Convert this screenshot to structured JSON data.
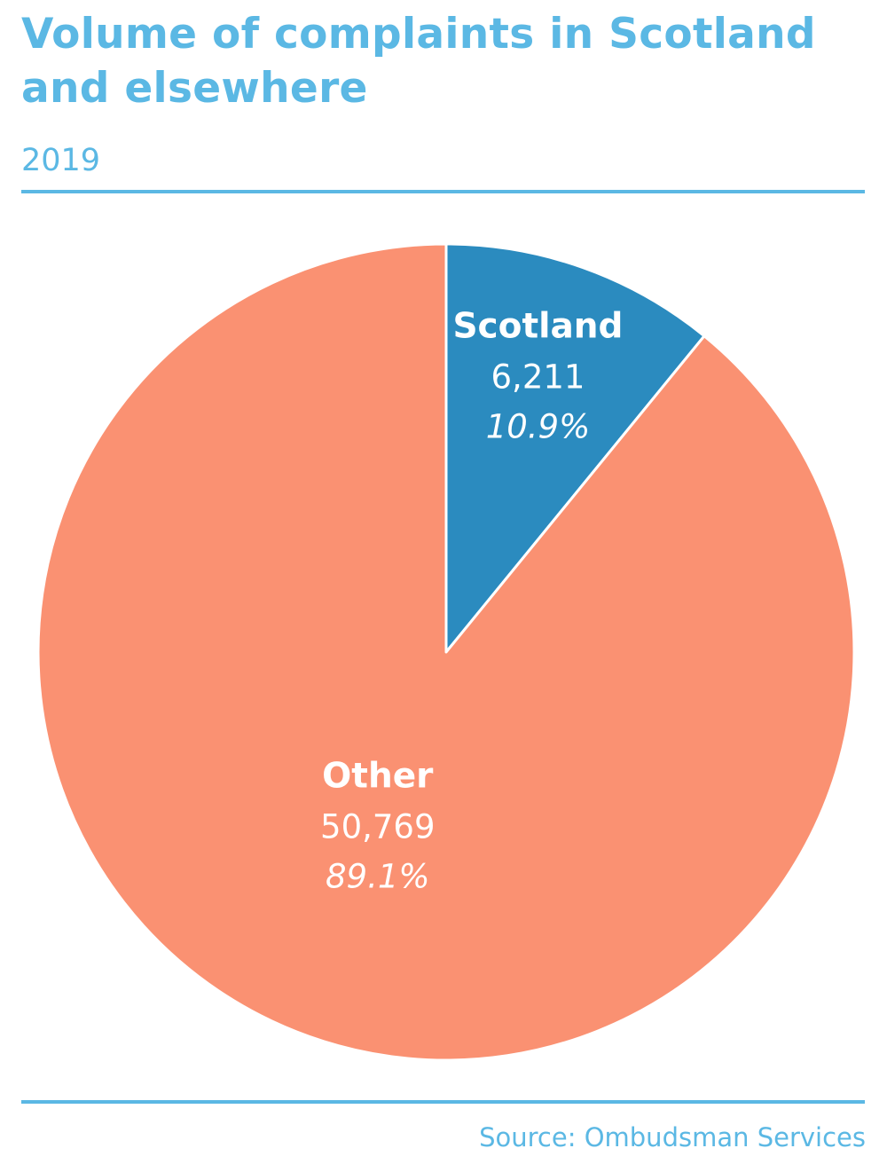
{
  "title": "Volume of complaints in Scotland and elsewhere",
  "subtitle": "2019",
  "source": "Source: Ombudsman Services",
  "colors": {
    "accent": "#5bb8e4",
    "scotland": "#2b8bbf",
    "other": "#fa9172",
    "label_text": "#ffffff"
  },
  "chart_data": {
    "type": "pie",
    "title": "Volume of complaints in Scotland and elsewhere",
    "subtitle": "2019",
    "slices": [
      {
        "label": "Scotland",
        "value": 6211,
        "value_label": "6,211",
        "percent_label": "10.9%",
        "color": "#2b8bbf"
      },
      {
        "label": "Other",
        "value": 50769,
        "value_label": "50,769",
        "percent_label": "89.1%",
        "color": "#fa9172"
      }
    ],
    "start_angle": "12 o'clock",
    "direction": "clockwise"
  }
}
